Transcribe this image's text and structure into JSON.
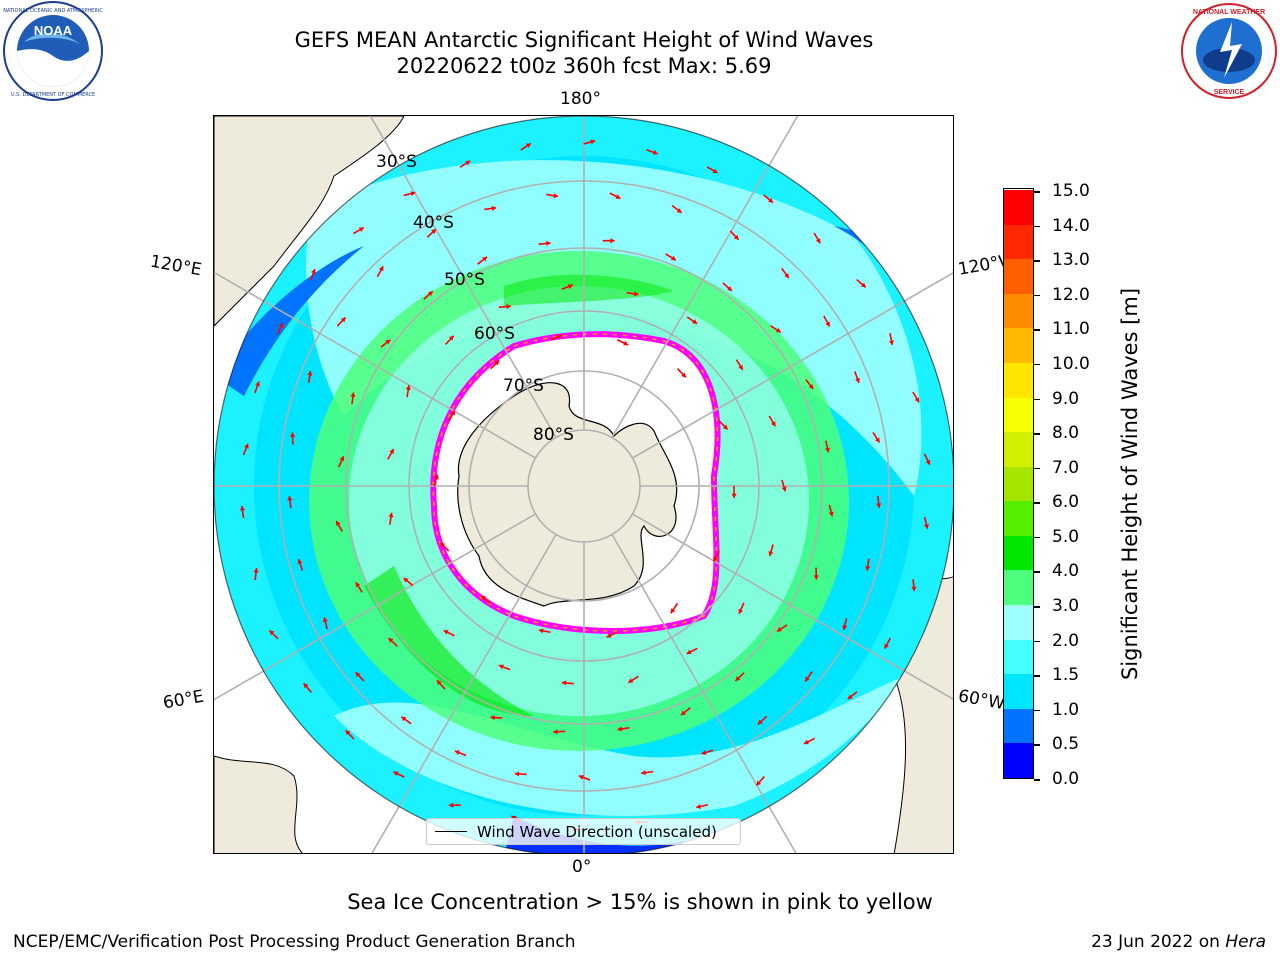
{
  "header": {
    "title_line1": "GEFS MEAN Antarctic Significant Height of Wind Waves",
    "title_line2": "20220622 t00z 360h fcst   Max: 5.69"
  },
  "logos": {
    "left": {
      "name": "NOAA",
      "ring_text": "NATIONAL OCEANIC AND ATMOSPHERIC ADMINISTRATION · U.S. DEPARTMENT OF COMMERCE"
    },
    "right": {
      "name": "National Weather Service",
      "ring_text": "NATIONAL WEATHER SERVICE"
    }
  },
  "map": {
    "projection": "south polar stereographic",
    "lon_labels": {
      "top": "180°",
      "bottom": "0°",
      "left_upper": "120°E",
      "left_lower": "60°E",
      "right_upper": "120°W",
      "right_lower": "60°W"
    },
    "lat_labels": [
      "30°S",
      "40°S",
      "50°S",
      "60°S",
      "70°S",
      "80°S"
    ],
    "legend_label": "Wind Wave Direction (unscaled)",
    "land_color": "#efebdc",
    "arrow_color": "#ff0000",
    "sea_ice_edge_colors": [
      "#ff00ff",
      "#ffa500",
      "#ffff00"
    ]
  },
  "colorbar": {
    "label": "Significant Height of Wind Waves [m]",
    "ticks": [
      "0.0",
      "0.5",
      "1.0",
      "1.5",
      "2.0",
      "3.0",
      "4.0",
      "5.0",
      "6.0",
      "7.0",
      "8.0",
      "9.0",
      "10.0",
      "11.0",
      "12.0",
      "13.0",
      "14.0",
      "15.0"
    ],
    "colors": [
      "#0000ff",
      "#0073ff",
      "#00e4ff",
      "#45ffff",
      "#a0ffff",
      "#4dff7a",
      "#00e600",
      "#55ee00",
      "#a5e500",
      "#d2ef00",
      "#f5ff00",
      "#ffe600",
      "#ffb900",
      "#ff8c00",
      "#ff5f00",
      "#ff2800",
      "#ff0000"
    ]
  },
  "footer": {
    "sea_ice_note": "Sea Ice Concentration > 15% is shown in pink to yellow",
    "left": "NCEP/EMC/Verification Post Processing Product Generation Branch",
    "right_prefix": "23 Jun 2022 on",
    "right_host": "Hera"
  }
}
